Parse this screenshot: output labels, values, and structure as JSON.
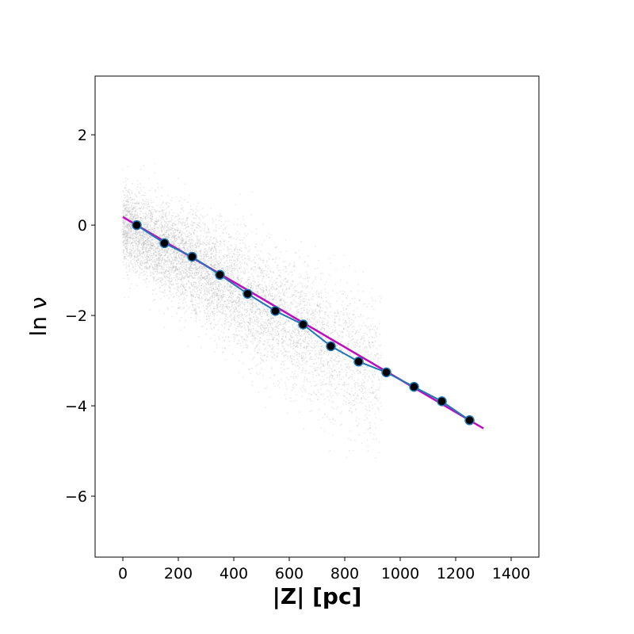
{
  "chart_data": {
    "type": "scatter",
    "title": "",
    "xlabel": "|Z| [pc]",
    "ylabel": "ln ν",
    "xlim": [
      -100,
      1500
    ],
    "ylim": [
      -7.35,
      3.3
    ],
    "xticks": [
      0,
      200,
      400,
      600,
      800,
      1000,
      1200,
      1400
    ],
    "yticks": [
      2,
      0,
      -2,
      -4,
      -6
    ],
    "grid": false,
    "background_scatter": {
      "name": "",
      "color": "#b0b0b0",
      "x_range": [
        0,
        1300
      ],
      "trend": {
        "slope": -0.0036,
        "intercept": 0.15
      },
      "note_visible": false
    },
    "series": [
      {
        "name": "",
        "type": "line-markers",
        "color": "#1f77b4",
        "marker_color": "#000000",
        "x": [
          50,
          150,
          250,
          350,
          450,
          550,
          650,
          750,
          850,
          950,
          1050,
          1150,
          1250
        ],
        "y": [
          0.0,
          -0.4,
          -0.7,
          -1.1,
          -1.52,
          -1.9,
          -2.2,
          -2.68,
          -3.02,
          -3.26,
          -3.58,
          -3.9,
          -4.32
        ]
      },
      {
        "name": "",
        "type": "fit-line",
        "color": "#c00cc0",
        "x": [
          0,
          1300
        ],
        "y": [
          0.18,
          -4.5
        ]
      }
    ]
  }
}
